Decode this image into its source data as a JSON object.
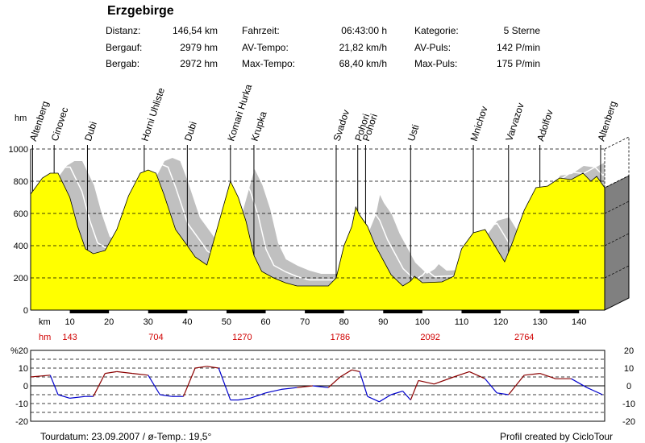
{
  "title": "Erzgebirge",
  "info": [
    {
      "label": "Distanz:",
      "value": "146,54 km"
    },
    {
      "label": "Bergauf:",
      "value": "2979 hm"
    },
    {
      "label": "Bergab:",
      "value": "2972 hm"
    },
    {
      "label": "Fahrzeit:",
      "value": "06:43:00 h"
    },
    {
      "label": "AV-Tempo:",
      "value": "21,82 km/h"
    },
    {
      "label": "Max-Tempo:",
      "value": "68,40 km/h"
    },
    {
      "label": "Kategorie:",
      "value": "5 Sterne"
    },
    {
      "label": "AV-Puls:",
      "value": "142 P/min"
    },
    {
      "label": "Max-Puls:",
      "value": "175 P/min"
    }
  ],
  "footer": {
    "left": "Tourdatum: 23.09.2007  /  ø-Temp.: 19,5°",
    "right": "Profil created by CicloTour"
  },
  "colors": {
    "fill": "#ffff00",
    "shadow": "#c0c0c0",
    "side": "#808080",
    "grade_up": "#8b0000",
    "grade_down": "#0000cc"
  },
  "chart_data": [
    {
      "type": "area",
      "ylabel": "hm",
      "xlabel": "km",
      "xlim": [
        0,
        146.54
      ],
      "ylim": [
        0,
        1000
      ],
      "y_ticks": [
        0,
        200,
        400,
        600,
        800,
        1000
      ],
      "x_ticks": [
        10,
        20,
        30,
        40,
        50,
        60,
        70,
        80,
        90,
        100,
        110,
        120,
        130,
        140
      ],
      "cumulative_climb_labels": [
        {
          "x": 10,
          "label": "143"
        },
        {
          "x": 32,
          "label": "704"
        },
        {
          "x": 54,
          "label": "1270"
        },
        {
          "x": 79,
          "label": "1786"
        },
        {
          "x": 102,
          "label": "2092"
        },
        {
          "x": 126,
          "label": "2764"
        }
      ],
      "waypoints": [
        {
          "name": "Altenberg",
          "km": 0.5
        },
        {
          "name": "Cinovec",
          "km": 6
        },
        {
          "name": "Dubi",
          "km": 14.5
        },
        {
          "name": "Horni Uhliste",
          "km": 29
        },
        {
          "name": "Dubi",
          "km": 40
        },
        {
          "name": "Komari Hurka",
          "km": 51
        },
        {
          "name": "Krupka",
          "km": 57
        },
        {
          "name": "Svadov",
          "km": 78
        },
        {
          "name": "Pohori",
          "km": 83.5
        },
        {
          "name": "Pohori",
          "km": 85.5
        },
        {
          "name": "Usti",
          "km": 97
        },
        {
          "name": "Mnichov",
          "km": 113
        },
        {
          "name": "Varvazov",
          "km": 122
        },
        {
          "name": "Adolfov",
          "km": 130
        },
        {
          "name": "Altenberg",
          "km": 145.5
        }
      ],
      "x": [
        0,
        3,
        5,
        7,
        10,
        12,
        14,
        16,
        19,
        22,
        25,
        28,
        30,
        32,
        34,
        37,
        40,
        42,
        45,
        48,
        51,
        53,
        55,
        57,
        59,
        62,
        65,
        68,
        72,
        76,
        78,
        80,
        82,
        83,
        84,
        86,
        88,
        92,
        95,
        97,
        98,
        100,
        105,
        108,
        110,
        113,
        116,
        118,
        121,
        123,
        126,
        129,
        132,
        135,
        138,
        141,
        143,
        144.5,
        146.54
      ],
      "values": [
        720,
        820,
        850,
        850,
        700,
        520,
        380,
        350,
        370,
        500,
        710,
        850,
        870,
        850,
        720,
        500,
        400,
        330,
        280,
        540,
        800,
        700,
        550,
        340,
        240,
        200,
        170,
        150,
        150,
        150,
        200,
        400,
        520,
        640,
        590,
        520,
        400,
        220,
        150,
        180,
        210,
        170,
        175,
        210,
        380,
        480,
        500,
        420,
        300,
        420,
        620,
        760,
        770,
        820,
        810,
        850,
        800,
        830,
        760
      ]
    },
    {
      "type": "bar",
      "ylabel": "%",
      "ylim": [
        -20,
        20
      ],
      "y_ticks": [
        -20,
        -10,
        0,
        10,
        20
      ],
      "series": [
        {
          "x": [
            0,
            5,
            7,
            10,
            14,
            16,
            19,
            22,
            26,
            30,
            33,
            36,
            39,
            42,
            45,
            48,
            51,
            53,
            56,
            60,
            64,
            68,
            72,
            76,
            79,
            82,
            84,
            86,
            89,
            92,
            95,
            97,
            99,
            103,
            108,
            112,
            116,
            119,
            122,
            126,
            130,
            134,
            138,
            142,
            146
          ],
          "values": [
            5,
            6,
            -5,
            -7,
            -6,
            -6,
            7,
            8,
            7,
            6,
            -5,
            -6,
            -6,
            10,
            11,
            10,
            -8,
            -8,
            -7,
            -4,
            -2,
            -1,
            0,
            -1,
            5,
            9,
            8,
            -6,
            -9,
            -5,
            -3,
            -8,
            3,
            1,
            5,
            8,
            4,
            -4,
            -5,
            6,
            7,
            4,
            4,
            -1,
            -5
          ]
        }
      ]
    }
  ]
}
